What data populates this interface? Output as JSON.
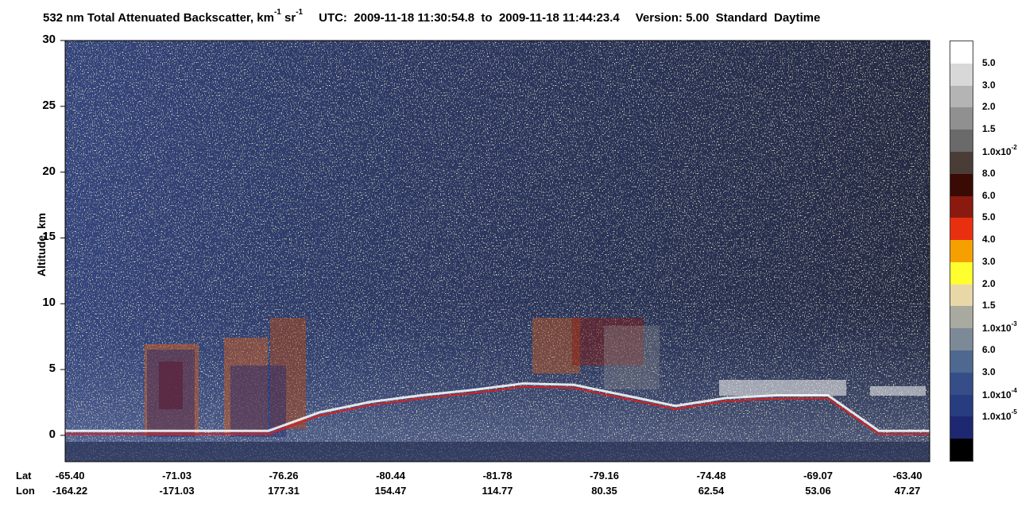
{
  "title": {
    "prefix": "532 nm Total Attenuated Backscatter, km",
    "exp1": "-1",
    "mid": " sr",
    "exp2": "-1",
    "utc_label": "UTC:",
    "time_start": "2009-11-18 11:30:54.8",
    "to": "to",
    "time_end": "2009-11-18 11:44:23.4",
    "version": "Version: 5.00",
    "mode": "Standard",
    "daytime": "Daytime"
  },
  "chart_data": {
    "type": "heatmap",
    "ylabel": "Altitude, km",
    "ylim": [
      -2,
      30
    ],
    "yticks": [
      0,
      5,
      10,
      15,
      20,
      25,
      30
    ],
    "row_labels": {
      "lat": "Lat",
      "lon": "Lon"
    },
    "lat_ticks": [
      "-65.40",
      "-71.03",
      "-76.26",
      "-80.44",
      "-81.78",
      "-79.16",
      "-74.48",
      "-69.07",
      "-63.40"
    ],
    "lon_ticks": [
      "-164.22",
      "-171.03",
      "177.31",
      "154.47",
      "114.77",
      "80.35",
      "62.54",
      "53.06",
      "47.27"
    ],
    "surface_elevation_km": [
      0.1,
      0.1,
      0.1,
      0.1,
      0.1,
      1.5,
      2.3,
      2.8,
      3.2,
      3.7,
      3.6,
      2.8,
      2.0,
      2.6,
      2.8,
      2.8,
      0.1,
      0.1
    ],
    "colorbar": {
      "colors": [
        "#ffffff",
        "#d8d8d8",
        "#b4b4b4",
        "#909090",
        "#6a6a6a",
        "#4a3d38",
        "#3a0a05",
        "#8a1a10",
        "#e83010",
        "#f5a000",
        "#ffff30",
        "#e8d8a8",
        "#a8aaa0",
        "#7c8a98",
        "#4e6890",
        "#364e88",
        "#283c80",
        "#1e2870",
        "#000000"
      ],
      "labels": [
        {
          "base": "5.0",
          "exp": ""
        },
        {
          "base": "3.0",
          "exp": ""
        },
        {
          "base": "2.0",
          "exp": ""
        },
        {
          "base": "1.5",
          "exp": ""
        },
        {
          "base": "1.0x10",
          "exp": "-2"
        },
        {
          "base": "8.0",
          "exp": ""
        },
        {
          "base": "6.0",
          "exp": ""
        },
        {
          "base": "5.0",
          "exp": ""
        },
        {
          "base": "4.0",
          "exp": ""
        },
        {
          "base": "3.0",
          "exp": ""
        },
        {
          "base": "2.0",
          "exp": ""
        },
        {
          "base": "1.5",
          "exp": ""
        },
        {
          "base": "1.0x10",
          "exp": "-3"
        },
        {
          "base": "6.0",
          "exp": ""
        },
        {
          "base": "3.0",
          "exp": ""
        },
        {
          "base": "1.0x10",
          "exp": "-4"
        },
        {
          "base": "1.0x10",
          "exp": "-5"
        }
      ]
    }
  }
}
